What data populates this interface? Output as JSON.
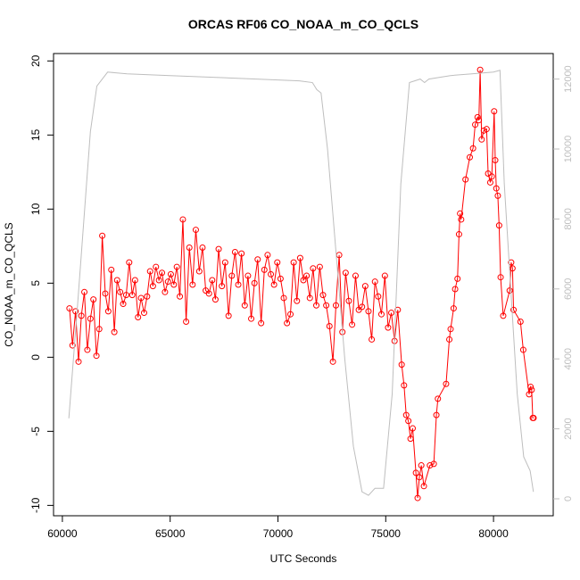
{
  "chart_data": {
    "type": "line",
    "title": "ORCAS RF06 CO_NOAA_m_CO_QCLS",
    "x_label": "UTC Seconds",
    "y_label": "CO_NOAA_m_CO_QCLS",
    "xlim": [
      59590,
      82770
    ],
    "xticks": [
      60000,
      65000,
      70000,
      75000,
      80000
    ],
    "ylim": [
      -10.7,
      20.5
    ],
    "yticks": [
      -10,
      -5,
      0,
      5,
      10,
      15,
      20
    ],
    "y2lim": [
      -485,
      12730
    ],
    "y2ticks": [
      0,
      2000,
      4000,
      6000,
      8000,
      10000,
      12000
    ],
    "y2_color": "#bebebe",
    "series": [
      {
        "color": "#ff0000",
        "marker": "circle",
        "x": [
          60330,
          60470,
          60610,
          60750,
          60880,
          61020,
          61160,
          61300,
          61440,
          61580,
          61710,
          61850,
          61990,
          62130,
          62270,
          62410,
          62540,
          62680,
          62820,
          62960,
          63100,
          63240,
          63370,
          63510,
          63650,
          63790,
          63930,
          64070,
          64200,
          64340,
          64480,
          64620,
          64760,
          64900,
          65030,
          65170,
          65310,
          65450,
          65590,
          65740,
          65890,
          66040,
          66190,
          66350,
          66500,
          66650,
          66800,
          66950,
          67100,
          67250,
          67400,
          67550,
          67710,
          67860,
          68010,
          68160,
          68310,
          68460,
          68610,
          68760,
          68910,
          69060,
          69220,
          69370,
          69520,
          69670,
          69820,
          69970,
          70120,
          70270,
          70420,
          70580,
          70730,
          70880,
          71030,
          71180,
          71330,
          71480,
          71630,
          71780,
          71940,
          72090,
          72240,
          72390,
          72550,
          72690,
          72840,
          72990,
          73140,
          73290,
          73440,
          73600,
          73750,
          73900,
          74050,
          74200,
          74350,
          74500,
          74650,
          74800,
          74960,
          75110,
          75260,
          75410,
          75560,
          75740,
          75850,
          75950,
          76050,
          76150,
          76250,
          76400,
          76480,
          76560,
          76650,
          76770,
          77050,
          77230,
          77350,
          77420,
          77800,
          77950,
          78010,
          78150,
          78220,
          78330,
          78400,
          78450,
          78500,
          78700,
          78900,
          79050,
          79150,
          79260,
          79320,
          79380,
          79450,
          79550,
          79680,
          79750,
          79850,
          79920,
          80030,
          80080,
          80130,
          80200,
          80260,
          80330,
          80450,
          80750,
          80820,
          80880,
          80930,
          81250,
          81380,
          81650,
          81720,
          81770,
          81820,
          81860
        ],
        "values": [
          3.3,
          0.8,
          3.1,
          -0.3,
          2.8,
          4.4,
          0.5,
          2.6,
          3.9,
          0.1,
          1.9,
          8.2,
          4.3,
          3.1,
          5.9,
          1.7,
          5.2,
          4.4,
          3.6,
          4.2,
          6.4,
          4.2,
          5.2,
          2.7,
          4.0,
          3.0,
          4.1,
          5.8,
          4.8,
          6.1,
          5.2,
          5.7,
          4.4,
          5.1,
          5.6,
          4.9,
          6.1,
          4.1,
          9.3,
          2.4,
          7.4,
          4.9,
          8.6,
          5.8,
          7.4,
          4.5,
          4.3,
          5.2,
          3.9,
          7.3,
          4.8,
          6.4,
          2.8,
          5.5,
          7.1,
          4.9,
          7.0,
          3.5,
          5.5,
          2.6,
          5.0,
          6.6,
          2.3,
          5.9,
          6.9,
          5.6,
          4.9,
          6.4,
          5.3,
          4.0,
          2.3,
          2.9,
          6.4,
          3.8,
          6.7,
          5.2,
          5.5,
          4.0,
          6.0,
          3.5,
          6.1,
          4.2,
          3.5,
          2.1,
          -0.3,
          3.5,
          6.9,
          1.7,
          5.7,
          3.8,
          2.2,
          5.5,
          3.2,
          3.4,
          4.8,
          3.1,
          1.2,
          5.1,
          4.1,
          2.9,
          5.5,
          2.0,
          3.0,
          1.1,
          3.2,
          -0.5,
          -1.9,
          -3.9,
          -4.3,
          -5.5,
          -4.8,
          -7.8,
          -9.5,
          -8.1,
          -7.3,
          -8.7,
          -7.3,
          -7.2,
          -3.9,
          -2.8,
          -1.8,
          1.2,
          1.9,
          3.3,
          4.6,
          5.3,
          8.3,
          9.7,
          9.3,
          12.0,
          13.5,
          14.1,
          15.7,
          16.2,
          16.0,
          19.4,
          14.7,
          15.3,
          15.4,
          12.4,
          11.8,
          12.2,
          16.6,
          13.3,
          11.4,
          10.9,
          8.9,
          5.4,
          2.8,
          4.5,
          6.4,
          6.0,
          3.2,
          2.4,
          0.5,
          -2.5,
          -2.0,
          -2.2,
          -4.1,
          -4.1
        ]
      },
      {
        "color": "#bebebe",
        "axis": "y2",
        "x": [
          60300,
          60700,
          61000,
          61300,
          61600,
          62100,
          63000,
          65000,
          67000,
          69000,
          71000,
          71600,
          71800,
          72000,
          72300,
          72700,
          73100,
          73500,
          73900,
          74200,
          74500,
          74900,
          75300,
          75700,
          76100,
          76600,
          76800,
          77000,
          78000,
          79000,
          80000,
          80300,
          80500,
          80800,
          81100,
          81400,
          81700,
          81850
        ],
        "values": [
          2300,
          5500,
          8000,
          10500,
          11800,
          12200,
          12150,
          12100,
          12050,
          12000,
          11950,
          11900,
          11700,
          11600,
          10000,
          7000,
          4000,
          1500,
          200,
          100,
          300,
          300,
          3000,
          9000,
          11900,
          12000,
          11900,
          12000,
          12100,
          12150,
          12200,
          12250,
          9000,
          6000,
          3000,
          1200,
          800,
          200
        ]
      }
    ]
  }
}
